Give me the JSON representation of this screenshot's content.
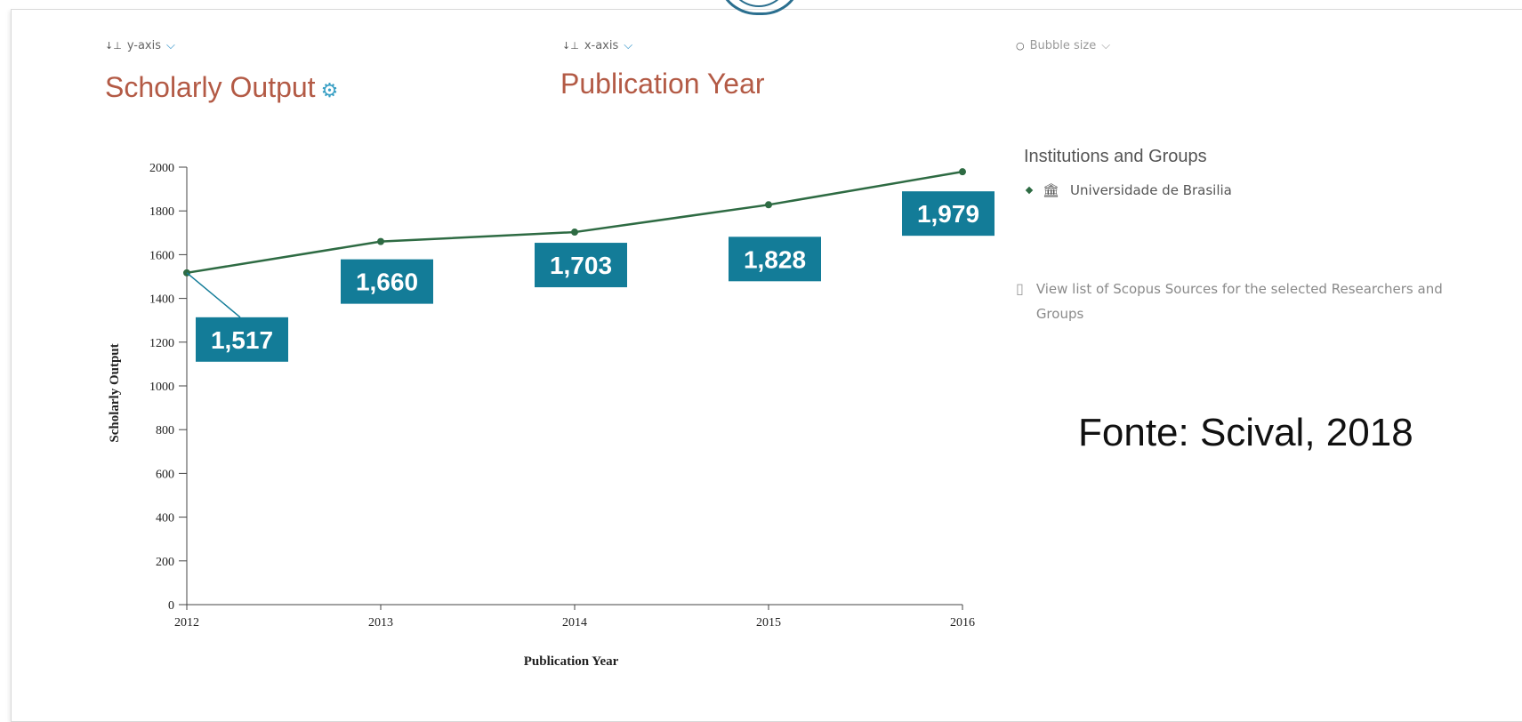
{
  "header": {
    "y_axis_selector": {
      "label": "y-axis"
    },
    "y_axis_metric": "Scholarly Output",
    "x_axis_selector": {
      "label": "x-axis"
    },
    "x_axis_metric": "Publication Year",
    "bubble_selector": {
      "label": "Bubble size"
    }
  },
  "legend": {
    "title": "Institutions and Groups",
    "items": [
      {
        "label": "Universidade de Brasilia",
        "color": "#2e6b43"
      }
    ]
  },
  "view_list_link": "View list of Scopus Sources for the selected Researchers and Groups",
  "source_note": "Fonte: Scival, 2018",
  "colors": {
    "line": "#2e6b43",
    "label_box": "#137c98",
    "title": "#b35a45",
    "accent": "#1a87c3"
  },
  "icons": {
    "y_axis": "axis-sort-icon",
    "x_axis": "axis-sort-icon",
    "bubble": "bubble-icon",
    "gear": "gear-icon",
    "institution": "institution-icon",
    "document": "document-icon"
  },
  "chart_data": {
    "type": "line",
    "x": [
      2012,
      2013,
      2014,
      2015,
      2016
    ],
    "series": [
      {
        "name": "Universidade de Brasilia",
        "values": [
          1517,
          1660,
          1703,
          1828,
          1979
        ]
      }
    ],
    "data_labels": [
      "1,517",
      "1,660",
      "1,703",
      "1,828",
      "1,979"
    ],
    "xlabel": "Publication Year",
    "ylabel": "Scholarly Output",
    "ylim": [
      0,
      2000
    ],
    "yticks": [
      0,
      200,
      400,
      600,
      800,
      1000,
      1200,
      1400,
      1600,
      1800,
      2000
    ],
    "xticks": [
      "2012",
      "2013",
      "2014",
      "2015",
      "2016"
    ],
    "grid": false
  }
}
